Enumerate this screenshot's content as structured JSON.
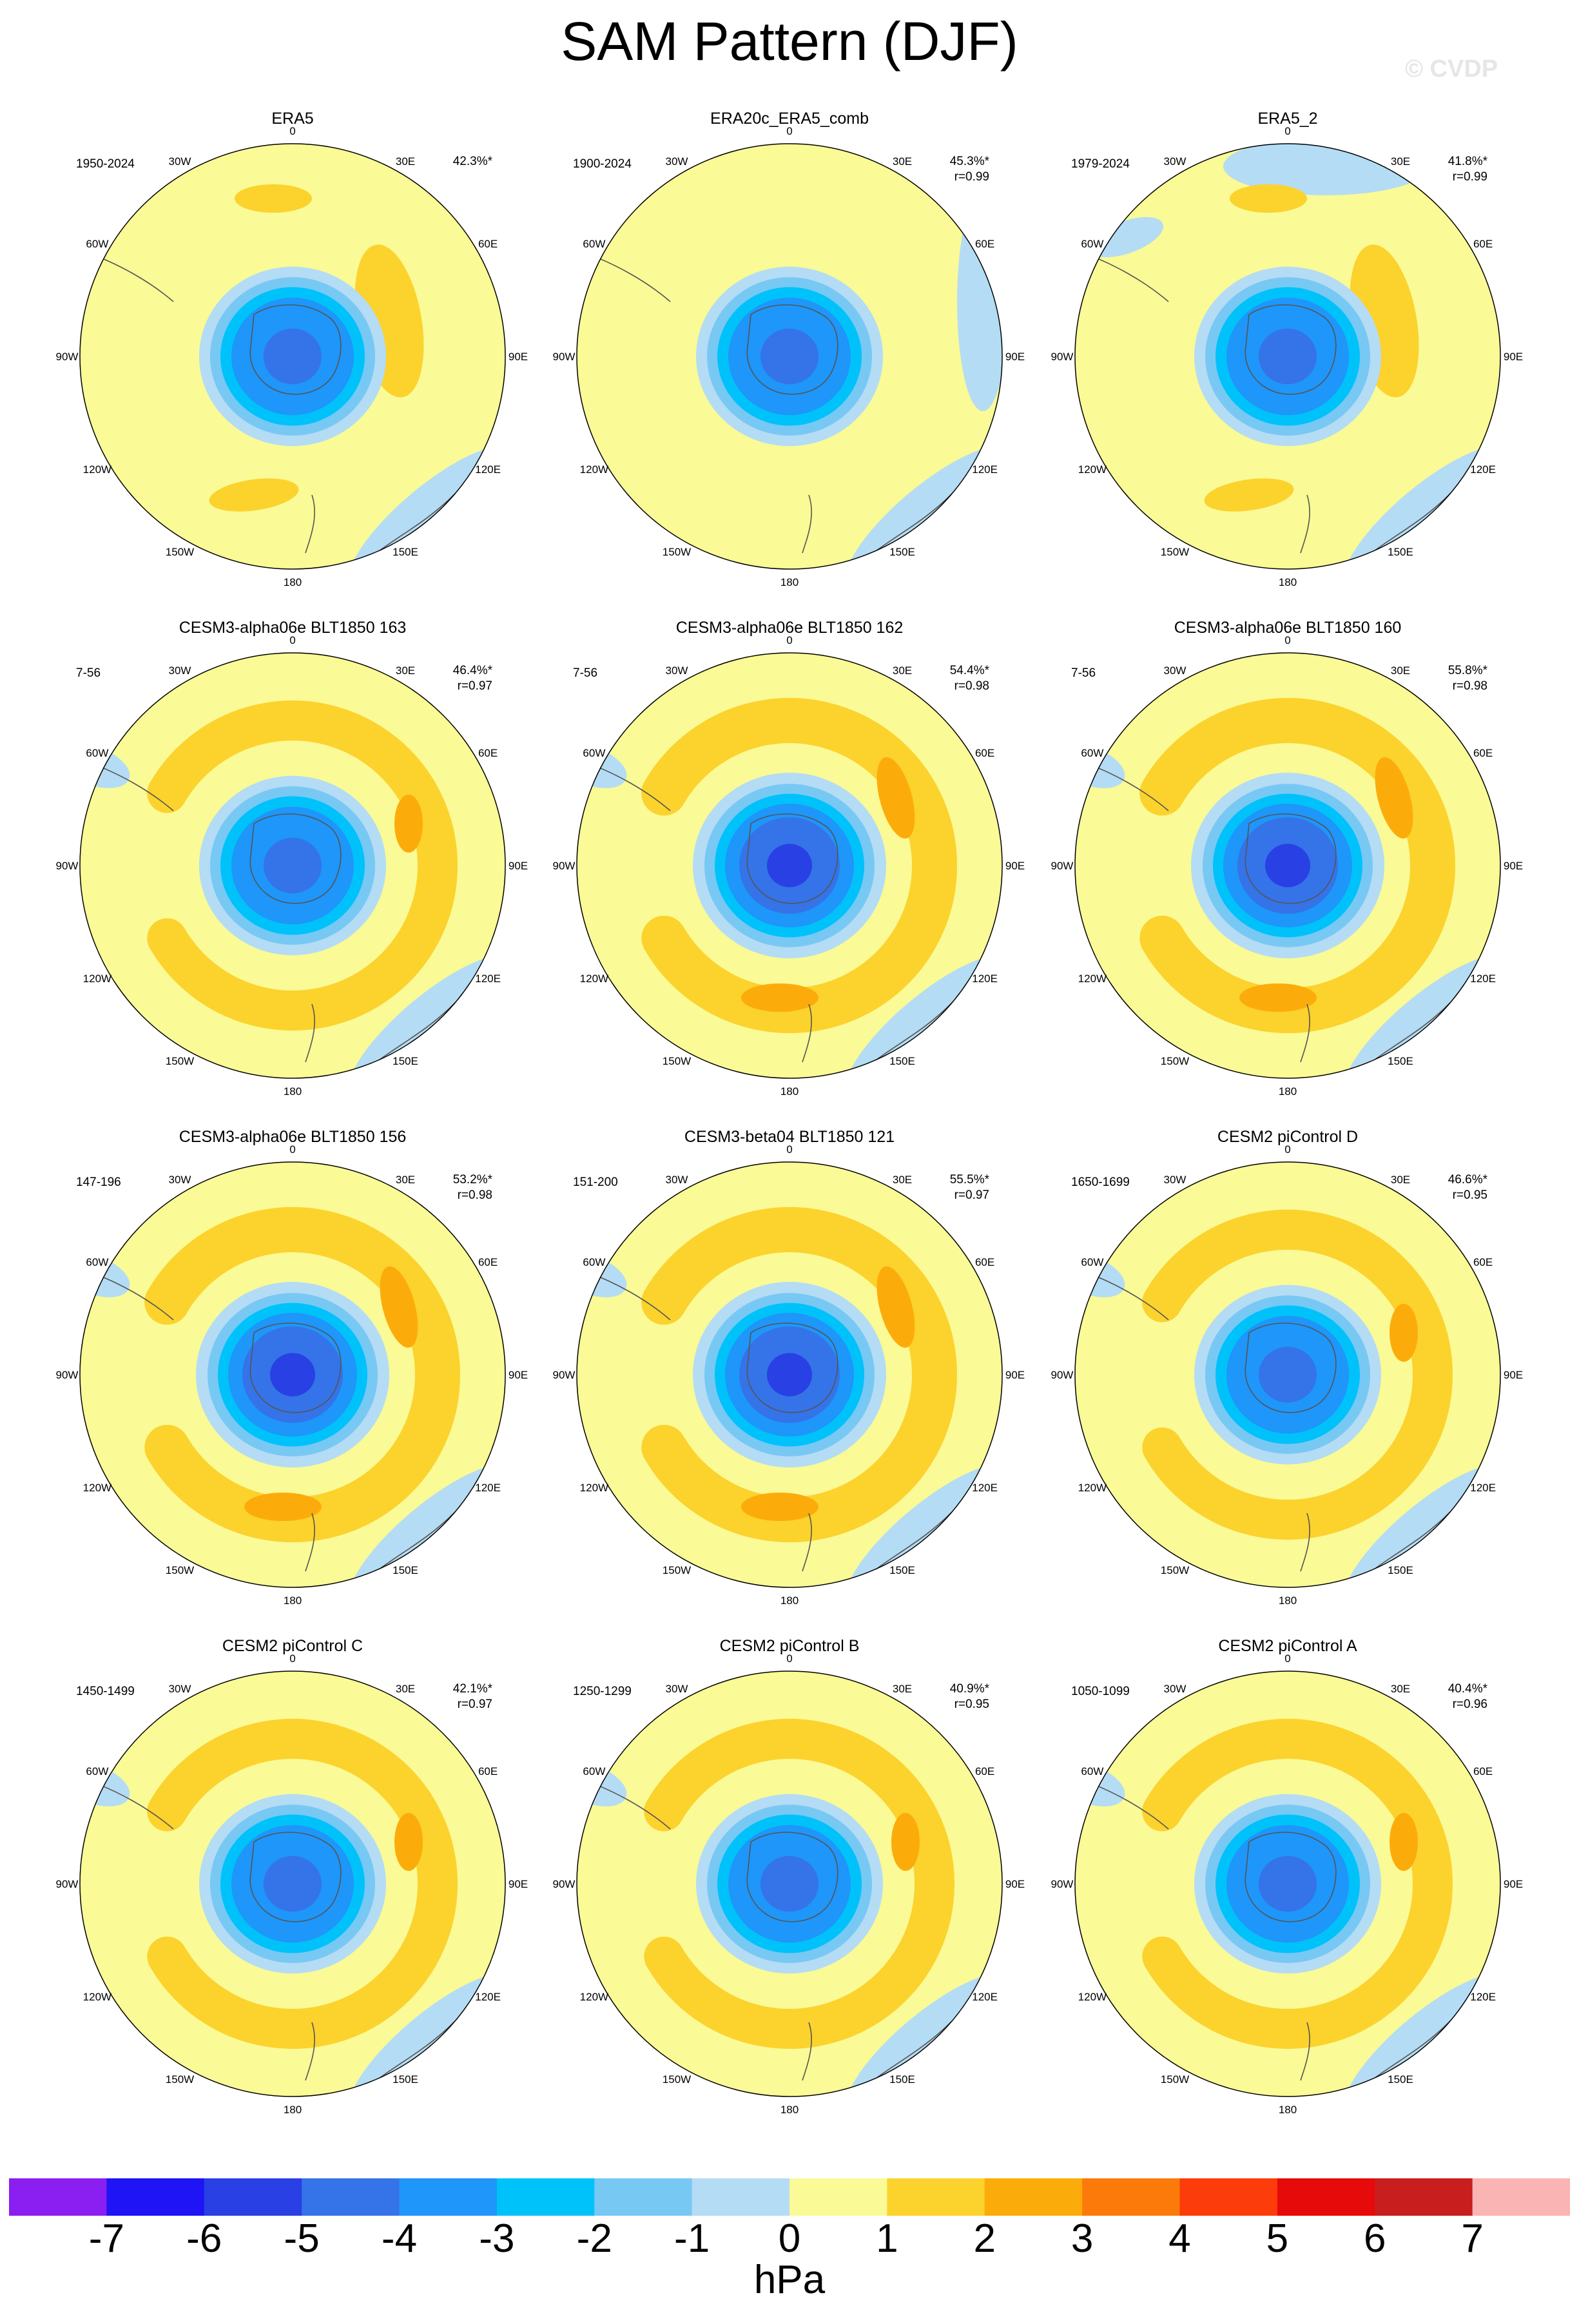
{
  "title": "SAM Pattern (DJF)",
  "watermark": "© CVDP",
  "lon_labels": [
    "0",
    "30E",
    "60E",
    "90E",
    "120E",
    "150E",
    "180",
    "150W",
    "120W",
    "90W",
    "60W",
    "30W"
  ],
  "panels": [
    {
      "title": "ERA5",
      "years": "1950-2024",
      "pct": "42.3%*",
      "r": "",
      "pattern": "era5"
    },
    {
      "title": "ERA20c_ERA5_comb",
      "years": "1900-2024",
      "pct": "45.3%*",
      "r": "r=0.99",
      "pattern": "era20c"
    },
    {
      "title": "ERA5_2",
      "years": "1979-2024",
      "pct": "41.8%*",
      "r": "r=0.99",
      "pattern": "era5b"
    },
    {
      "title": "CESM3-alpha06e BLT1850 163",
      "years": "7-56",
      "pct": "46.4%*",
      "r": "r=0.97",
      "pattern": "ring"
    },
    {
      "title": "CESM3-alpha06e BLT1850 162",
      "years": "7-56",
      "pct": "54.4%*",
      "r": "r=0.98",
      "pattern": "ringdeep"
    },
    {
      "title": "CESM3-alpha06e BLT1850 160",
      "years": "7-56",
      "pct": "55.8%*",
      "r": "r=0.98",
      "pattern": "ringdeep"
    },
    {
      "title": "CESM3-alpha06e BLT1850 156",
      "years": "147-196",
      "pct": "53.2%*",
      "r": "r=0.98",
      "pattern": "ringdeep"
    },
    {
      "title": "CESM3-beta04 BLT1850 121",
      "years": "151-200",
      "pct": "55.5%*",
      "r": "r=0.97",
      "pattern": "ringdeep"
    },
    {
      "title": "CESM2 piControl D",
      "years": "1650-1699",
      "pct": "46.6%*",
      "r": "r=0.95",
      "pattern": "ring"
    },
    {
      "title": "CESM2 piControl C",
      "years": "1450-1499",
      "pct": "42.1%*",
      "r": "r=0.97",
      "pattern": "ring"
    },
    {
      "title": "CESM2 piControl B",
      "years": "1250-1299",
      "pct": "40.9%*",
      "r": "r=0.95",
      "pattern": "ring"
    },
    {
      "title": "CESM2 piControl A",
      "years": "1050-1099",
      "pct": "40.4%*",
      "r": "r=0.96",
      "pattern": "ring"
    }
  ],
  "colorbar": {
    "units": "hPa",
    "labels": [
      "-7",
      "-6",
      "-5",
      "-4",
      "-3",
      "-2",
      "-1",
      "0",
      "1",
      "2",
      "3",
      "4",
      "5",
      "6",
      "7"
    ],
    "colors": [
      "#8b1ef0",
      "#1e14f5",
      "#2840e4",
      "#3573e8",
      "#1e96fa",
      "#00c2fa",
      "#78c8f4",
      "#b4dcf4",
      "#fafa96",
      "#fcd22d",
      "#fcac0a",
      "#fc7a0a",
      "#fc3c0a",
      "#e60a0a",
      "#c81e1e",
      "#fab4b4"
    ]
  }
}
